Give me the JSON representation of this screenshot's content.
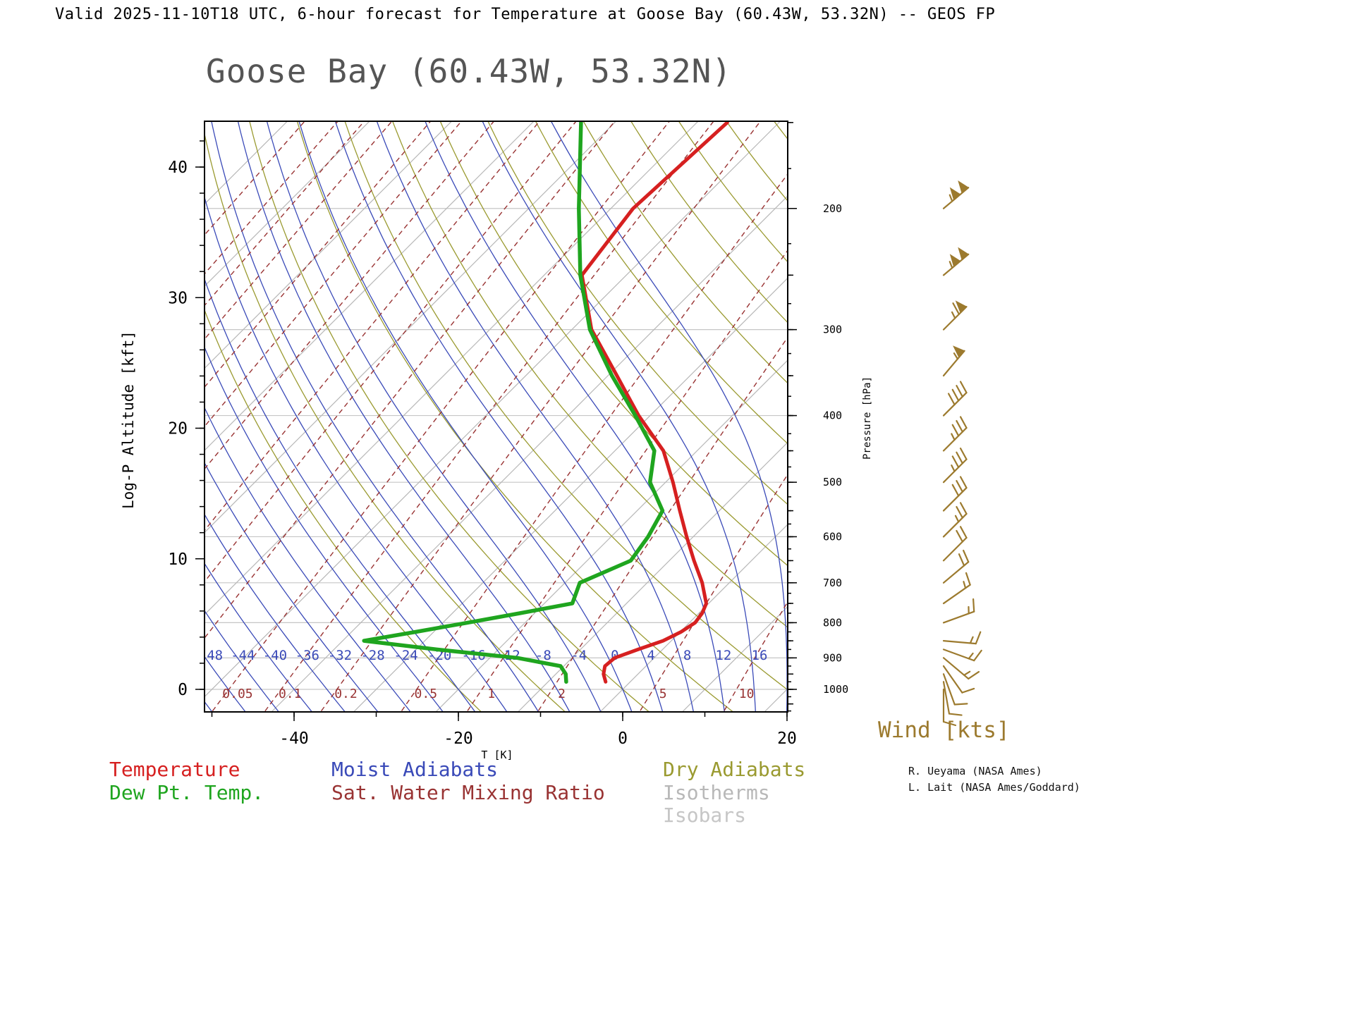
{
  "header": {
    "title": "Valid 2025-11-10T18 UTC, 6-hour forecast for Temperature at Goose Bay (60.43W, 53.32N) -- GEOS FP"
  },
  "chart": {
    "title": "Goose Bay (60.43W, 53.32N)"
  },
  "axes": {
    "left_label": "Log-P Altitude [kft]",
    "left_ticks": [
      0,
      10,
      20,
      30,
      40
    ],
    "right_label": "Pressure [hPa]",
    "right_ticks": [
      200,
      300,
      400,
      500,
      600,
      700,
      800,
      900,
      1000
    ],
    "bottom_label": "T [K]",
    "bottom_ticks": [
      -40,
      -20,
      0,
      20
    ]
  },
  "legend": {
    "items": [
      {
        "label": "Temperature",
        "color": "#d62020"
      },
      {
        "label": "Dew Pt. Temp.",
        "color": "#1fa51f"
      },
      {
        "label": "Moist Adiabats",
        "color": "#3a4ab8"
      },
      {
        "label": "Sat. Water Mixing Ratio",
        "color": "#993333"
      },
      {
        "label": "Dry Adiabats",
        "color": "#9a9a30"
      },
      {
        "label": "Isotherms",
        "color": "#b8b8b8"
      },
      {
        "label": "Isobars",
        "color": "#c6c6c6"
      }
    ]
  },
  "wind": {
    "label": "Wind [kts]",
    "color": "#9c7a2e",
    "units": "kts"
  },
  "credits": {
    "line1": "R. Ueyama (NASA Ames)",
    "line2": "L. Lait (NASA Ames/Goddard)"
  },
  "chart_data": {
    "type": "skewt_logp_sounding",
    "title": "Goose Bay (60.43W, 53.32N)",
    "location": "Goose Bay",
    "longitude": "60.43W",
    "latitude": "53.32N",
    "valid_time": "2025-11-10T18 UTC",
    "forecast": "6-hour forecast",
    "model": "GEOS FP",
    "pressure_hPa": [
      975,
      950,
      925,
      900,
      875,
      850,
      825,
      800,
      775,
      750,
      700,
      650,
      600,
      550,
      500,
      450,
      400,
      350,
      300,
      250,
      200,
      150
    ],
    "temperature_C": [
      -3.0,
      -4.2,
      -5.0,
      -4.8,
      -3.0,
      -1.0,
      0.1,
      0.7,
      0.4,
      -0.3,
      -3.3,
      -7.0,
      -10.8,
      -14.8,
      -19.1,
      -24.1,
      -31.4,
      -38.9,
      -47.6,
      -55.4,
      -57.3,
      -56.3
    ],
    "dewpoint_C": [
      -7.8,
      -8.8,
      -10.4,
      -16.7,
      -27.5,
      -37.4,
      -32.2,
      -27.0,
      -21.8,
      -16.6,
      -18.2,
      -14.7,
      -15.5,
      -16.9,
      -21.9,
      -25.2,
      -31.8,
      -39.5,
      -47.8,
      -55.6,
      -63.9,
      -74.1
    ],
    "winds": [
      {
        "p": 200,
        "dir": 50,
        "spd": 105
      },
      {
        "p": 250,
        "dir": 50,
        "spd": 105
      },
      {
        "p": 300,
        "dir": 45,
        "spd": 65
      },
      {
        "p": 350,
        "dir": 40,
        "spd": 55
      },
      {
        "p": 400,
        "dir": 45,
        "spd": 40
      },
      {
        "p": 450,
        "dir": 45,
        "spd": 35
      },
      {
        "p": 500,
        "dir": 45,
        "spd": 35
      },
      {
        "p": 550,
        "dir": 45,
        "spd": 30
      },
      {
        "p": 600,
        "dir": 45,
        "spd": 25
      },
      {
        "p": 650,
        "dir": 45,
        "spd": 20
      },
      {
        "p": 700,
        "dir": 50,
        "spd": 20
      },
      {
        "p": 750,
        "dir": 55,
        "spd": 15
      },
      {
        "p": 800,
        "dir": 70,
        "spd": 15
      },
      {
        "p": 850,
        "dir": 95,
        "spd": 15
      },
      {
        "p": 875,
        "dir": 110,
        "spd": 15
      },
      {
        "p": 900,
        "dir": 130,
        "spd": 15
      },
      {
        "p": 925,
        "dir": 145,
        "spd": 10
      },
      {
        "p": 950,
        "dir": 160,
        "spd": 10
      },
      {
        "p": 975,
        "dir": 170,
        "spd": 10
      },
      {
        "p": 1000,
        "dir": 180,
        "spd": 10
      }
    ],
    "moist_adiabat_labels_C": [
      -48,
      -44,
      -40,
      -36,
      -32,
      -28,
      -24,
      -20,
      -16,
      -12,
      -8,
      -4,
      0,
      4,
      8,
      12,
      16
    ],
    "mixing_ratio_labels_gkg": [
      0.05,
      0.1,
      0.2,
      0.5,
      1,
      2,
      5,
      10
    ],
    "background": {
      "isobars_hPa": [
        200,
        300,
        400,
        500,
        600,
        700,
        800,
        900,
        1000
      ],
      "isotherms_C": {
        "min": -130,
        "max": 30,
        "step": 10
      },
      "dry_adiabats_thetaC": {
        "min": -20,
        "max": 150,
        "step": 10
      },
      "moist_adiabats_C": {
        "min": -56,
        "max": 20,
        "step": 4
      },
      "mixing_ratios_gkg": [
        2e-05,
        5e-05,
        0.0001,
        0.0002,
        0.0005,
        0.001,
        0.002,
        0.005,
        0.01,
        0.02,
        0.05,
        0.1,
        0.2,
        0.5,
        1,
        2,
        5,
        10,
        20
      ]
    },
    "legend_position": "bottom",
    "grid": true
  }
}
